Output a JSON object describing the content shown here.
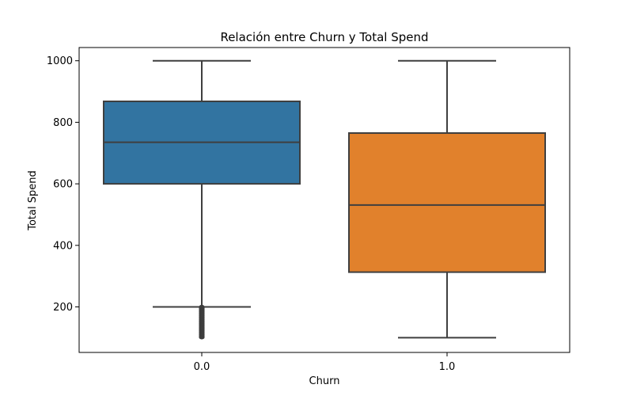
{
  "chart_data": {
    "type": "box",
    "title": "Relación entre Churn y Total Spend",
    "xlabel": "Churn",
    "ylabel": "Total Spend",
    "categories": [
      "0.0",
      "1.0"
    ],
    "ylim": [
      52,
      1043
    ],
    "yticks": [
      200,
      400,
      600,
      800,
      1000
    ],
    "grid": false,
    "boxes": [
      {
        "category": "0.0",
        "whisker_low": 200,
        "q1": 600,
        "median": 735,
        "q3": 868,
        "whisker_high": 1000,
        "outliers_range": [
          100,
          200
        ],
        "color": "#3274a1"
      },
      {
        "category": "1.0",
        "whisker_low": 100,
        "q1": 313,
        "median": 531,
        "q3": 765,
        "whisker_high": 1000,
        "outliers_range": null,
        "color": "#e1812c"
      }
    ],
    "colors": {
      "line": "#3f3f3f",
      "axis": "#000000"
    }
  }
}
